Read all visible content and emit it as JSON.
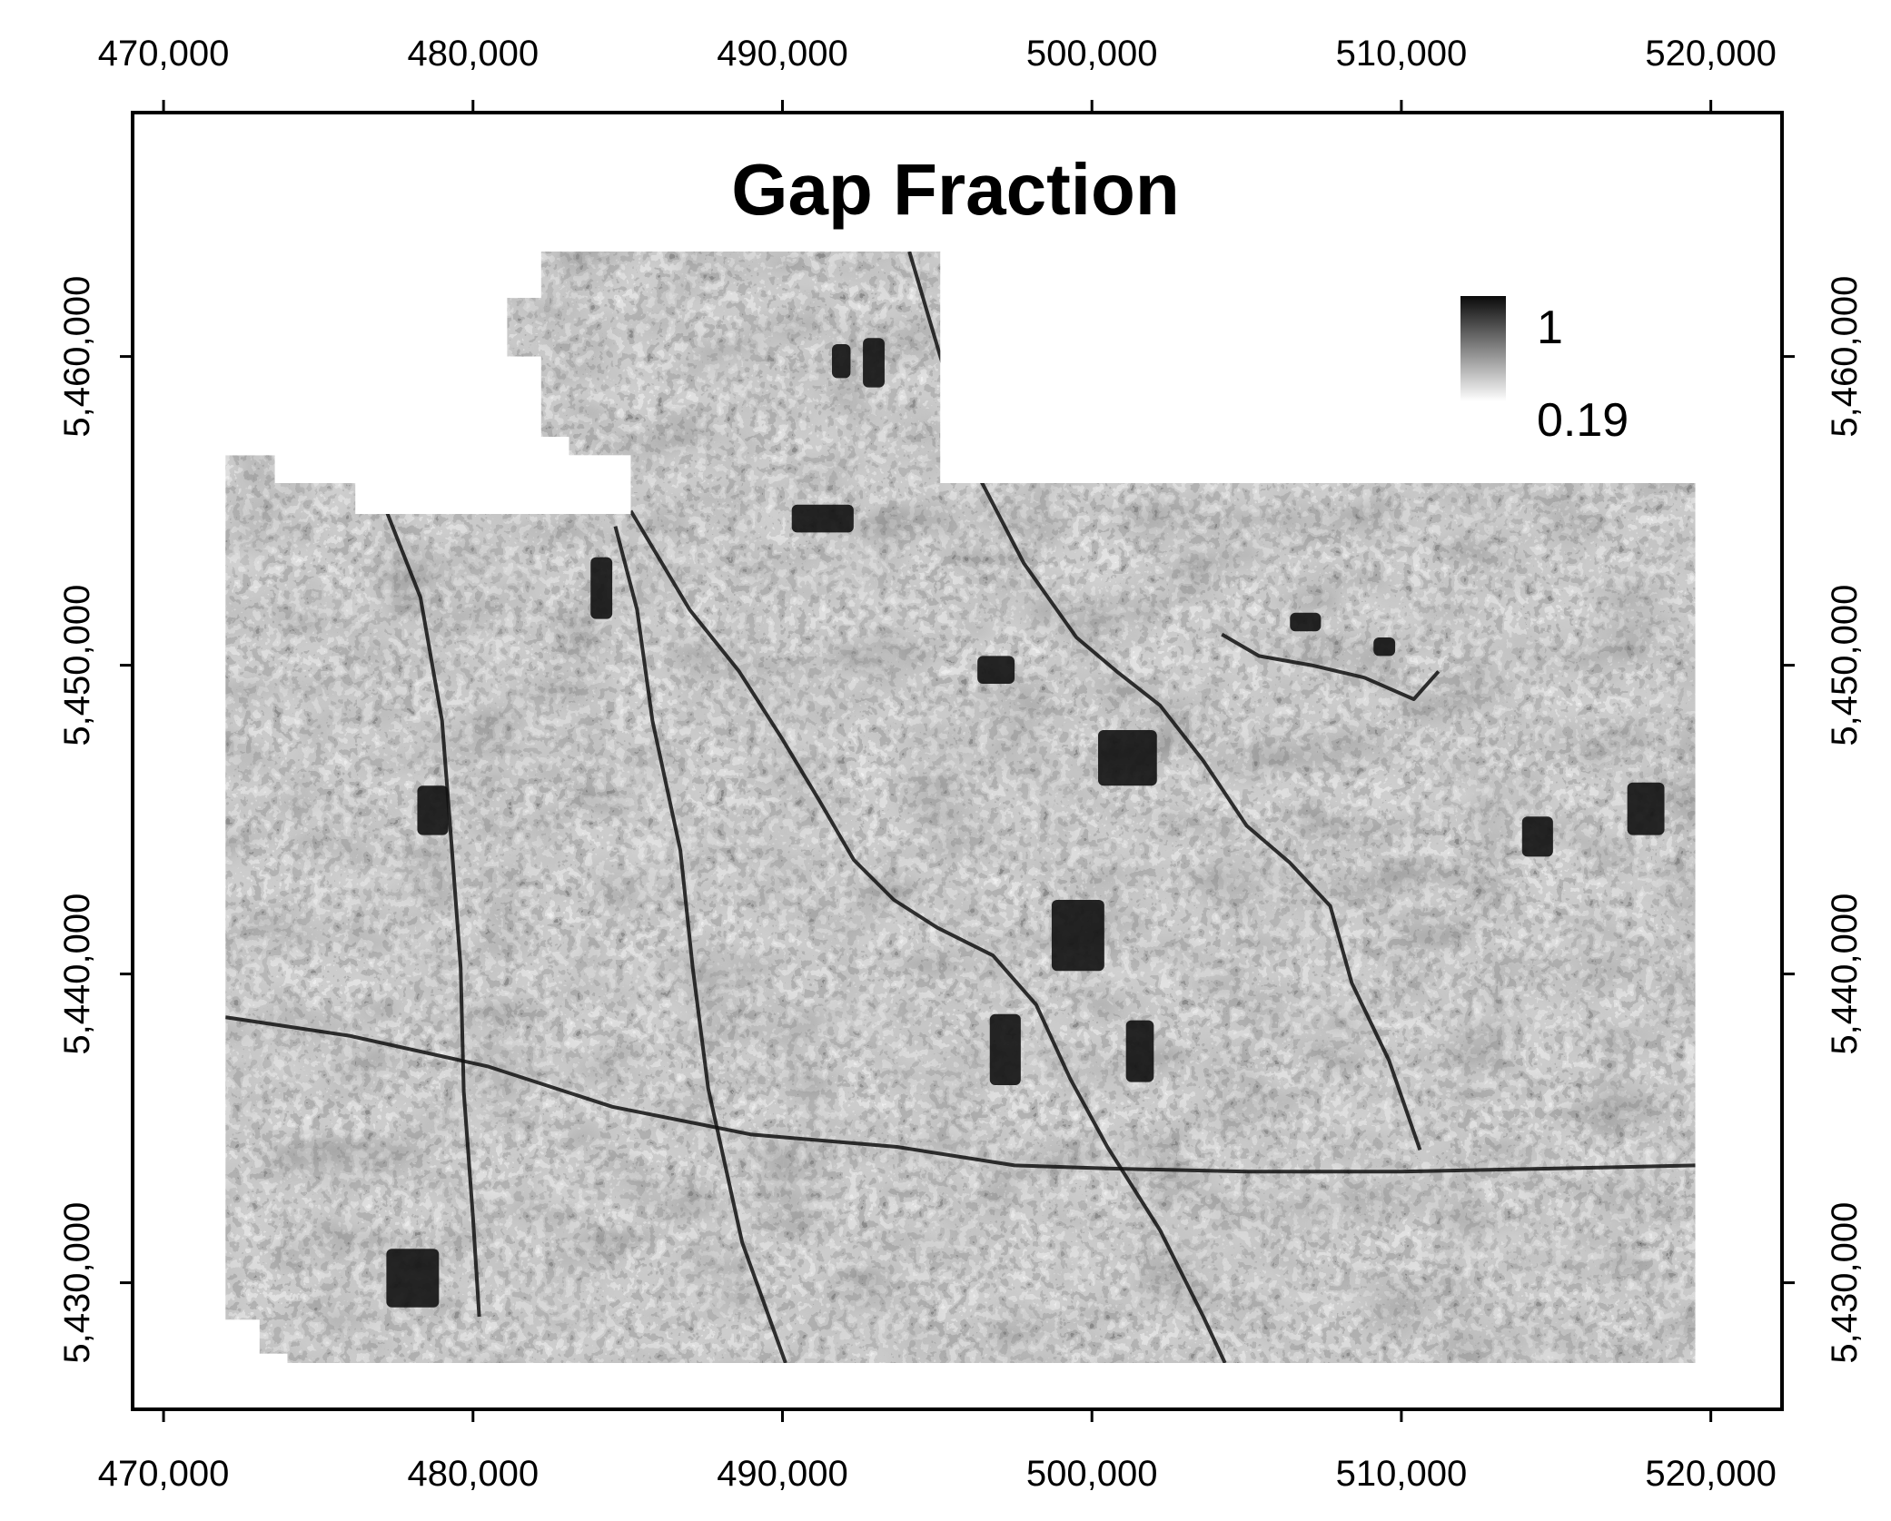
{
  "title": "Gap Fraction",
  "x_ticks": [
    "470,000",
    "480,000",
    "490,000",
    "500,000",
    "510,000",
    "520,000"
  ],
  "y_ticks": [
    "5,430,000",
    "5,440,000",
    "5,450,000",
    "5,460,000"
  ],
  "x_tick_values": [
    470000,
    480000,
    490000,
    500000,
    510000,
    520000
  ],
  "y_tick_values": [
    5430000,
    5440000,
    5450000,
    5460000
  ],
  "extent": {
    "xmin": 469000,
    "xmax": 522300,
    "ymin": 5425900,
    "ymax": 5467900
  },
  "legend": {
    "max_label": "1",
    "min_label": "0.19",
    "max_value": 1,
    "min_value": 0.19,
    "ramp_colors": [
      "#0a0a0a",
      "#ffffff"
    ]
  },
  "raster": {
    "description_colors": {
      "dark": "#111111",
      "mid": "#777777",
      "light": "#eeeeee"
    },
    "boundary_coords": [
      [
        472000,
        5428800
      ],
      [
        472000,
        5456800
      ],
      [
        473600,
        5456800
      ],
      [
        473600,
        5455900
      ],
      [
        476200,
        5455900
      ],
      [
        476200,
        5454900
      ],
      [
        485100,
        5454900
      ],
      [
        485100,
        5456800
      ],
      [
        483100,
        5456800
      ],
      [
        483100,
        5457400
      ],
      [
        482200,
        5457400
      ],
      [
        482200,
        5460000
      ],
      [
        481100,
        5460000
      ],
      [
        481100,
        5461900
      ],
      [
        482200,
        5461900
      ],
      [
        482200,
        5463400
      ],
      [
        495100,
        5463400
      ],
      [
        495100,
        5455900
      ],
      [
        519500,
        5455900
      ],
      [
        519500,
        5427400
      ],
      [
        474000,
        5427400
      ],
      [
        474000,
        5427700
      ],
      [
        473100,
        5427700
      ],
      [
        473100,
        5428800
      ]
    ],
    "dark_patches": [
      [
        478200,
        5444500,
        1000,
        1600
      ],
      [
        491600,
        5459300,
        600,
        1100
      ],
      [
        492600,
        5459000,
        700,
        1600
      ],
      [
        490300,
        5454300,
        2000,
        900
      ],
      [
        483800,
        5451500,
        700,
        2000
      ],
      [
        498700,
        5440100,
        1700,
        2300
      ],
      [
        500200,
        5446100,
        1900,
        1800
      ],
      [
        496300,
        5449400,
        1200,
        900
      ],
      [
        477200,
        5429200,
        1700,
        1900
      ],
      [
        496700,
        5436400,
        1000,
        2300
      ],
      [
        501100,
        5436500,
        900,
        2000
      ],
      [
        513900,
        5443800,
        1000,
        1300
      ],
      [
        517300,
        5444500,
        1200,
        1700
      ],
      [
        506400,
        5451100,
        1000,
        600
      ],
      [
        509100,
        5450300,
        700,
        600
      ]
    ],
    "rivers": [
      [
        [
          485100,
          5455000
        ],
        [
          487000,
          5451800
        ],
        [
          488600,
          5449800
        ],
        [
          490000,
          5447600
        ],
        [
          491200,
          5445600
        ],
        [
          492300,
          5443700
        ],
        [
          493600,
          5442400
        ],
        [
          495000,
          5441500
        ],
        [
          496800,
          5440600
        ],
        [
          498200,
          5439000
        ],
        [
          499300,
          5436600
        ],
        [
          500500,
          5434400
        ],
        [
          502200,
          5431700
        ],
        [
          503600,
          5428900
        ],
        [
          504300,
          5427400
        ]
      ],
      [
        [
          494100,
          5463400
        ],
        [
          495100,
          5460000
        ],
        [
          496300,
          5456200
        ],
        [
          497800,
          5453300
        ],
        [
          499500,
          5450900
        ],
        [
          500800,
          5449800
        ],
        [
          502200,
          5448700
        ],
        [
          503600,
          5446900
        ],
        [
          505000,
          5444800
        ],
        [
          506400,
          5443600
        ],
        [
          507700,
          5442200
        ],
        [
          508400,
          5439700
        ],
        [
          509600,
          5437200
        ],
        [
          510600,
          5434300
        ]
      ],
      [
        [
          477200,
          5455000
        ],
        [
          478300,
          5452200
        ],
        [
          479000,
          5448200
        ],
        [
          479300,
          5444300
        ],
        [
          479600,
          5440200
        ],
        [
          479700,
          5436200
        ],
        [
          480000,
          5432100
        ],
        [
          480200,
          5428900
        ]
      ],
      [
        [
          504200,
          5451000
        ],
        [
          505400,
          5450300
        ],
        [
          507100,
          5450000
        ],
        [
          508800,
          5449600
        ],
        [
          510400,
          5448900
        ],
        [
          511200,
          5449800
        ]
      ],
      [
        [
          472000,
          5438600
        ],
        [
          476000,
          5438000
        ],
        [
          480500,
          5437000
        ],
        [
          484500,
          5435700
        ],
        [
          489000,
          5434800
        ],
        [
          493700,
          5434400
        ],
        [
          497500,
          5433800
        ],
        [
          500500,
          5433700
        ],
        [
          505000,
          5433600
        ],
        [
          510000,
          5433600
        ],
        [
          515000,
          5433700
        ],
        [
          519500,
          5433800
        ]
      ],
      [
        [
          484600,
          5454500
        ],
        [
          485300,
          5451800
        ],
        [
          485800,
          5448200
        ],
        [
          486700,
          5444000
        ],
        [
          487100,
          5440200
        ],
        [
          487600,
          5436300
        ],
        [
          488700,
          5431300
        ],
        [
          490100,
          5427400
        ]
      ]
    ]
  }
}
